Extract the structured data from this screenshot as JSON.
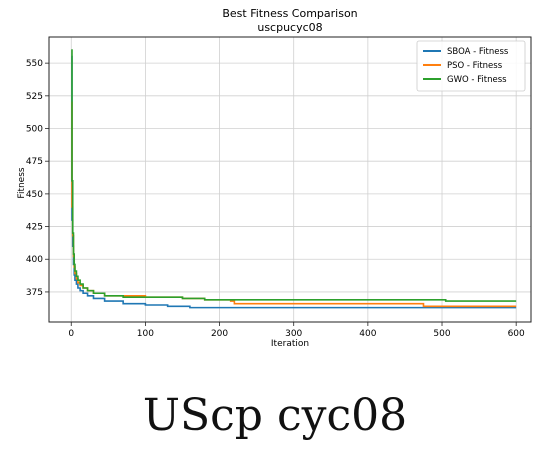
{
  "chart_data": {
    "type": "line",
    "title": "Best Fitness Comparison",
    "subtitle": "uscpucyc08",
    "xlabel": "Iteration",
    "ylabel": "Fitness",
    "xlim": [
      -30,
      620
    ],
    "ylim": [
      352,
      570
    ],
    "x_ticks": [
      0,
      100,
      200,
      300,
      400,
      500,
      600
    ],
    "y_ticks": [
      375,
      400,
      425,
      450,
      475,
      500,
      525,
      550
    ],
    "grid": true,
    "legend_position": "top-right",
    "series": [
      {
        "name": "SBOA - Fitness",
        "color": "#1f77b4",
        "points": [
          [
            0,
            555
          ],
          [
            1,
            430
          ],
          [
            2,
            410
          ],
          [
            3,
            396
          ],
          [
            4,
            388
          ],
          [
            5,
            384
          ],
          [
            7,
            381
          ],
          [
            9,
            378
          ],
          [
            12,
            376
          ],
          [
            16,
            374
          ],
          [
            22,
            372
          ],
          [
            30,
            370
          ],
          [
            45,
            368
          ],
          [
            70,
            366
          ],
          [
            100,
            365
          ],
          [
            130,
            364
          ],
          [
            160,
            363
          ],
          [
            200,
            363
          ],
          [
            400,
            363
          ],
          [
            480,
            363
          ],
          [
            600,
            363
          ]
        ]
      },
      {
        "name": "PSO - Fitness",
        "color": "#ff7f0e",
        "points": [
          [
            0,
            520
          ],
          [
            1,
            440
          ],
          [
            2,
            418
          ],
          [
            3,
            402
          ],
          [
            4,
            394
          ],
          [
            5,
            389
          ],
          [
            7,
            385
          ],
          [
            9,
            382
          ],
          [
            12,
            380
          ],
          [
            16,
            378
          ],
          [
            22,
            376
          ],
          [
            30,
            374
          ],
          [
            45,
            372
          ],
          [
            70,
            372
          ],
          [
            100,
            371
          ],
          [
            150,
            370
          ],
          [
            180,
            369
          ],
          [
            215,
            368
          ],
          [
            220,
            366
          ],
          [
            400,
            366
          ],
          [
            470,
            366
          ],
          [
            475,
            364
          ],
          [
            600,
            364
          ]
        ]
      },
      {
        "name": "GWO - Fitness",
        "color": "#2ca02c",
        "points": [
          [
            0,
            560
          ],
          [
            1,
            460
          ],
          [
            2,
            420
          ],
          [
            3,
            404
          ],
          [
            4,
            396
          ],
          [
            5,
            391
          ],
          [
            7,
            387
          ],
          [
            9,
            384
          ],
          [
            12,
            381
          ],
          [
            16,
            378
          ],
          [
            22,
            376
          ],
          [
            30,
            374
          ],
          [
            45,
            372
          ],
          [
            70,
            371
          ],
          [
            100,
            371
          ],
          [
            150,
            370
          ],
          [
            180,
            369
          ],
          [
            200,
            369
          ],
          [
            300,
            369
          ],
          [
            500,
            369
          ],
          [
            505,
            368
          ],
          [
            600,
            368
          ]
        ]
      }
    ]
  },
  "caption": "UScp cyc08"
}
